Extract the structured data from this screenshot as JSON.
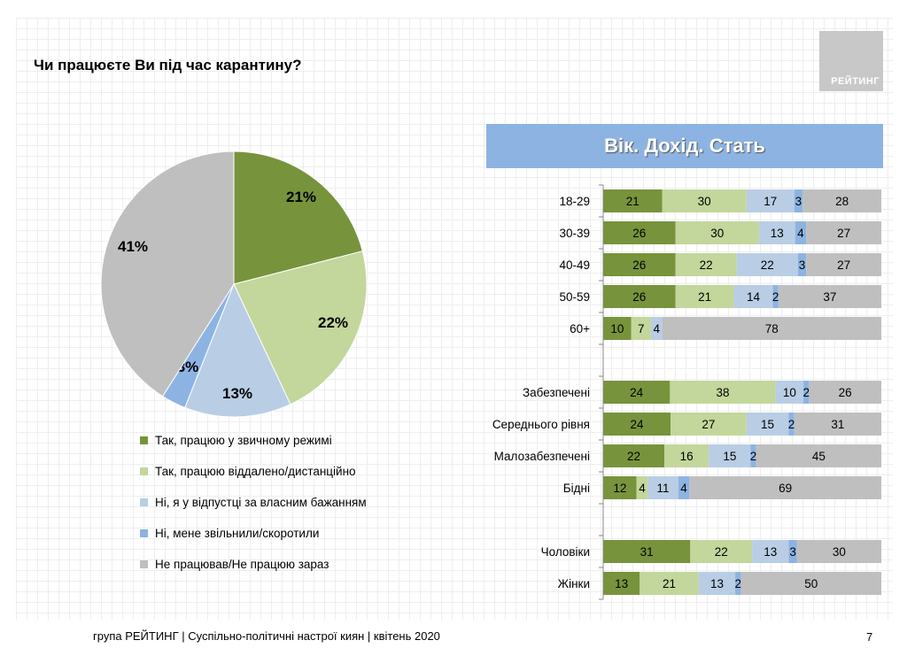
{
  "title": "Чи працюєте Ви під час карантину?",
  "logo_text": "РЕЙТИНГ",
  "panel_header": "Вік. Дохід. Стать",
  "footer": "група РЕЙТИНГ | Суспільно-політичні настрої киян | квітень 2020",
  "page_number": "7",
  "colors": [
    "#77933c",
    "#c3d69b",
    "#b9cde5",
    "#8db3e2",
    "#bfbfbf"
  ],
  "chart_data": [
    {
      "type": "pie",
      "categories": [
        "Так, працюю у звичному режимі",
        "Так, працюю віддалено/дистанційно",
        "Ні, я у відпустці за власним бажанням",
        "Ні, мене звільнили/скоротили",
        "Не працював/Не працюю зараз"
      ],
      "values": [
        21,
        22,
        13,
        3,
        41
      ],
      "labels": [
        "21%",
        "22%",
        "13%",
        "3%",
        "41%"
      ],
      "legend": "bottom"
    },
    {
      "type": "bar",
      "stacked": true,
      "orientation": "horizontal",
      "series_names_from_legend": true,
      "groups": [
        {
          "rows": [
            {
              "label": "18-29",
              "values": [
                21,
                30,
                17,
                3,
                28
              ]
            },
            {
              "label": "30-39",
              "values": [
                26,
                30,
                13,
                4,
                27
              ]
            },
            {
              "label": "40-49",
              "values": [
                26,
                22,
                22,
                3,
                27
              ]
            },
            {
              "label": "50-59",
              "values": [
                26,
                21,
                14,
                2,
                37
              ]
            },
            {
              "label": "60+",
              "values": [
                10,
                7,
                4,
                null,
                78
              ]
            }
          ]
        },
        {
          "rows": [
            {
              "label": "Забезпечені",
              "values": [
                24,
                38,
                10,
                2,
                26
              ]
            },
            {
              "label": "Середнього рівня",
              "values": [
                24,
                27,
                15,
                2,
                31
              ]
            },
            {
              "label": "Малозабезпечені",
              "values": [
                22,
                16,
                15,
                2,
                45
              ]
            },
            {
              "label": "Бідні",
              "values": [
                12,
                4,
                11,
                4,
                69
              ]
            }
          ]
        },
        {
          "rows": [
            {
              "label": "Чоловіки",
              "values": [
                31,
                22,
                13,
                3,
                30
              ]
            },
            {
              "label": "Жінки",
              "values": [
                13,
                21,
                13,
                2,
                50
              ]
            }
          ]
        }
      ]
    }
  ]
}
